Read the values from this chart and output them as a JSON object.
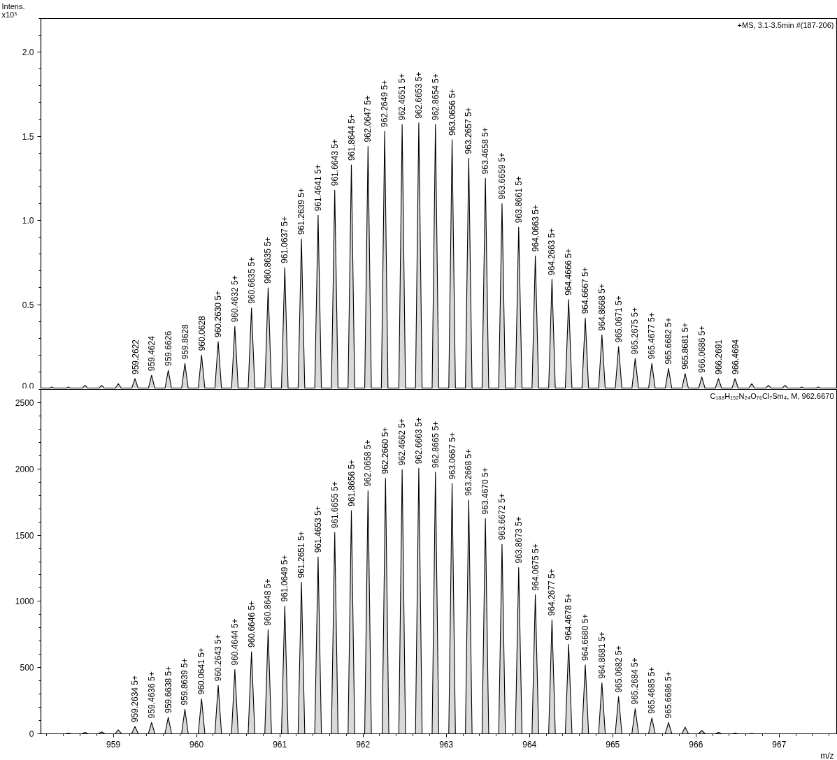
{
  "chart_data": [
    {
      "type": "area",
      "ylabel": "Intens.\nx10⁵",
      "xlim": [
        958.13,
        967.69
      ],
      "xticks": [
        959,
        960,
        961,
        962,
        963,
        964,
        965,
        966,
        967
      ],
      "ylim": [
        0,
        2.2
      ],
      "yticks": [
        {
          "value": 0,
          "label": "0.0"
        },
        {
          "value": 0.5,
          "label": "0.5"
        },
        {
          "value": 1,
          "label": "1.0"
        },
        {
          "value": 1.5,
          "label": "1.5"
        },
        {
          "value": 2,
          "label": "2.0"
        }
      ],
      "tick_labels": "y",
      "series": [
        {
          "color": "#d9d9d9",
          "x": [
            958.22,
            958.26,
            958.3,
            958.42,
            958.46,
            958.5,
            958.62,
            958.66,
            958.7,
            958.82,
            958.86,
            958.9,
            959.02,
            959.06,
            959.1,
            959.22,
            959.26,
            959.3,
            959.42,
            959.46,
            959.5,
            959.62,
            959.66,
            959.7,
            959.82,
            959.86,
            959.9,
            960.02,
            960.06,
            960.1,
            960.22,
            960.26,
            960.3,
            960.42,
            960.46,
            960.5,
            960.62,
            960.66,
            960.7,
            960.82,
            960.86,
            960.9,
            961.02,
            961.06,
            961.1,
            961.22,
            961.26,
            961.3,
            961.42,
            961.46,
            961.5,
            961.62,
            961.66,
            961.7,
            961.82,
            961.86,
            961.9,
            962.02,
            962.06,
            962.1,
            962.22,
            962.26,
            962.3,
            962.43,
            962.47,
            962.51,
            962.63,
            962.67,
            962.71,
            962.83,
            962.87,
            962.91,
            963.03,
            963.07,
            963.11,
            963.23,
            963.27,
            963.31,
            963.43,
            963.47,
            963.51,
            963.63,
            963.67,
            963.71,
            963.83,
            963.87,
            963.91,
            964.03,
            964.07,
            964.11,
            964.23,
            964.27,
            964.31,
            964.43,
            964.47,
            964.51,
            964.63,
            964.67,
            964.71,
            964.83,
            964.87,
            964.91,
            965.03,
            965.07,
            965.11,
            965.23,
            965.27,
            965.31,
            965.43,
            965.47,
            965.51,
            965.63,
            965.67,
            965.71,
            965.83,
            965.87,
            965.91,
            966.03,
            966.07,
            966.11,
            966.23,
            966.27,
            966.31,
            966.43,
            966.47,
            966.51,
            966.63,
            966.67,
            966.71,
            966.83,
            966.87,
            966.91,
            967.03,
            967.07,
            967.11,
            967.23,
            967.27,
            967.31,
            967.43,
            967.47,
            967.51
          ],
          "values": [
            0,
            0.01,
            0,
            0,
            0.01,
            0,
            0,
            0.02,
            0,
            0,
            0.02,
            0,
            0,
            0.03,
            0,
            0,
            0.06,
            0,
            0,
            0.08,
            0,
            0,
            0.11,
            0,
            0,
            0.15,
            0,
            0,
            0.2,
            0,
            0,
            0.28,
            0,
            0,
            0.37,
            0,
            0,
            0.48,
            0,
            0,
            0.6,
            0,
            0,
            0.72,
            0,
            0,
            0.89,
            0,
            0,
            1.03,
            0,
            0,
            1.18,
            0,
            0,
            1.33,
            0,
            0,
            1.44,
            0,
            0,
            1.53,
            0,
            0,
            1.57,
            0,
            0,
            1.58,
            0,
            0,
            1.57,
            0,
            0,
            1.48,
            0,
            0,
            1.37,
            0,
            0,
            1.25,
            0,
            0,
            1.1,
            0,
            0,
            0.96,
            0,
            0,
            0.79,
            0,
            0,
            0.65,
            0,
            0,
            0.53,
            0,
            0,
            0.42,
            0,
            0,
            0.32,
            0,
            0,
            0.25,
            0,
            0,
            0.18,
            0,
            0,
            0.15,
            0,
            0,
            0.12,
            0,
            0,
            0.09,
            0,
            0,
            0.07,
            0,
            0,
            0.06,
            0,
            0,
            0.06,
            0,
            0,
            0.03,
            0,
            0,
            0.02,
            0,
            0,
            0.02,
            0,
            0,
            0.01,
            0,
            0,
            0.01,
            0
          ]
        }
      ],
      "annotations": [
        "+MS, 3.1-3.5min #(187-206)",
        {
          "text": "959.2622",
          "x": 959.26,
          "y": 0.06
        },
        {
          "text": "959.4624",
          "x": 959.46,
          "y": 0.08
        },
        {
          "text": "959.6626",
          "x": 959.66,
          "y": 0.11
        },
        {
          "text": "959.8628",
          "x": 959.86,
          "y": 0.15
        },
        {
          "text": "960.0628",
          "x": 960.06,
          "y": 0.2
        },
        {
          "text": "960.2630  5+",
          "x": 960.26,
          "y": 0.28
        },
        {
          "text": "960.4632  5+",
          "x": 960.46,
          "y": 0.37
        },
        {
          "text": "960.6635  5+",
          "x": 960.66,
          "y": 0.48
        },
        {
          "text": "960.8635  5+",
          "x": 960.86,
          "y": 0.6
        },
        {
          "text": "961.0637  5+",
          "x": 961.06,
          "y": 0.72
        },
        {
          "text": "961.2639  5+",
          "x": 961.26,
          "y": 0.89
        },
        {
          "text": "961.4641  5+",
          "x": 961.46,
          "y": 1.03
        },
        {
          "text": "961.6643  5+",
          "x": 961.66,
          "y": 1.18
        },
        {
          "text": "961.8644  5+",
          "x": 961.86,
          "y": 1.33
        },
        {
          "text": "962.0647  5+",
          "x": 962.06,
          "y": 1.44
        },
        {
          "text": "962.2649  5+",
          "x": 962.26,
          "y": 1.53
        },
        {
          "text": "962.4651  5+",
          "x": 962.47,
          "y": 1.57
        },
        {
          "text": "962.6653  5+",
          "x": 962.67,
          "y": 1.58
        },
        {
          "text": "962.8654  5+",
          "x": 962.87,
          "y": 1.57
        },
        {
          "text": "963.0656  5+",
          "x": 963.07,
          "y": 1.48
        },
        {
          "text": "963.2657  5+",
          "x": 963.27,
          "y": 1.37
        },
        {
          "text": "963.4658  5+",
          "x": 963.47,
          "y": 1.25
        },
        {
          "text": "963.6659  5+",
          "x": 963.67,
          "y": 1.1
        },
        {
          "text": "963.8661  5+",
          "x": 963.87,
          "y": 0.96
        },
        {
          "text": "964.0663  5+",
          "x": 964.07,
          "y": 0.79
        },
        {
          "text": "964.2663  5+",
          "x": 964.27,
          "y": 0.65
        },
        {
          "text": "964.4666  5+",
          "x": 964.47,
          "y": 0.53
        },
        {
          "text": "964.6667  5+",
          "x": 964.67,
          "y": 0.42
        },
        {
          "text": "964.8668  5+",
          "x": 964.87,
          "y": 0.32
        },
        {
          "text": "965.0671  5+",
          "x": 965.07,
          "y": 0.25
        },
        {
          "text": "965.2675  5+",
          "x": 965.27,
          "y": 0.18
        },
        {
          "text": "965.4677  5+",
          "x": 965.47,
          "y": 0.15
        },
        {
          "text": "965.6682  5+",
          "x": 965.67,
          "y": 0.12
        },
        {
          "text": "965.8681  5+",
          "x": 965.87,
          "y": 0.09
        },
        {
          "text": "966.0686  5+",
          "x": 966.07,
          "y": 0.07
        },
        {
          "text": "966.2691",
          "x": 966.27,
          "y": 0.06
        },
        {
          "text": "966.4694",
          "x": 966.47,
          "y": 0.06
        }
      ]
    },
    {
      "type": "area",
      "xlabel": "m/z",
      "xlim": [
        958.13,
        967.69
      ],
      "xticks": [
        959,
        960,
        961,
        962,
        963,
        964,
        965,
        966,
        967
      ],
      "ylim": [
        0,
        2600
      ],
      "yticks": [
        0,
        500,
        1000,
        1500,
        2000,
        2500
      ],
      "series": [
        {
          "color": "#d9d9d9",
          "x": [
            958.42,
            958.46,
            958.5,
            958.62,
            958.66,
            958.7,
            958.82,
            958.86,
            958.9,
            959.02,
            959.06,
            959.1,
            959.22,
            959.26,
            959.3,
            959.42,
            959.46,
            959.5,
            959.62,
            959.66,
            959.7,
            959.82,
            959.86,
            959.9,
            960.02,
            960.06,
            960.1,
            960.22,
            960.26,
            960.3,
            960.42,
            960.46,
            960.5,
            960.62,
            960.66,
            960.7,
            960.82,
            960.86,
            960.9,
            961.02,
            961.06,
            961.1,
            961.22,
            961.26,
            961.3,
            961.42,
            961.46,
            961.5,
            961.62,
            961.66,
            961.7,
            961.82,
            961.86,
            961.9,
            962.02,
            962.06,
            962.1,
            962.23,
            962.27,
            962.31,
            962.43,
            962.47,
            962.51,
            962.63,
            962.67,
            962.71,
            962.83,
            962.87,
            962.91,
            963.03,
            963.07,
            963.11,
            963.23,
            963.27,
            963.31,
            963.43,
            963.47,
            963.51,
            963.63,
            963.67,
            963.71,
            963.83,
            963.87,
            963.91,
            964.03,
            964.07,
            964.11,
            964.23,
            964.27,
            964.31,
            964.43,
            964.47,
            964.51,
            964.63,
            964.67,
            964.71,
            964.83,
            964.87,
            964.91,
            965.03,
            965.07,
            965.11,
            965.23,
            965.27,
            965.31,
            965.43,
            965.47,
            965.51,
            965.63,
            965.67,
            965.71,
            965.83,
            965.87,
            965.91,
            966.03,
            966.07,
            966.11,
            966.23,
            966.27,
            966.31,
            966.43,
            966.47,
            966.51,
            966.63,
            966.67,
            966.71
          ],
          "values": [
            0,
            5,
            0,
            0,
            10,
            0,
            0,
            15,
            0,
            0,
            30,
            0,
            0,
            55,
            0,
            0,
            85,
            0,
            0,
            125,
            0,
            0,
            185,
            0,
            0,
            265,
            0,
            0,
            365,
            0,
            0,
            485,
            0,
            0,
            620,
            0,
            0,
            785,
            0,
            0,
            965,
            0,
            0,
            1145,
            0,
            0,
            1335,
            0,
            0,
            1520,
            0,
            0,
            1685,
            0,
            0,
            1835,
            0,
            0,
            1930,
            0,
            0,
            1995,
            0,
            0,
            2005,
            0,
            0,
            1975,
            0,
            0,
            1890,
            0,
            0,
            1765,
            0,
            0,
            1625,
            0,
            0,
            1430,
            0,
            0,
            1255,
            0,
            0,
            1050,
            0,
            0,
            860,
            0,
            0,
            675,
            0,
            0,
            520,
            0,
            0,
            385,
            0,
            0,
            280,
            0,
            0,
            190,
            0,
            0,
            120,
            0,
            0,
            85,
            0,
            0,
            50,
            0,
            0,
            25,
            0,
            0,
            10,
            0,
            0,
            5,
            0,
            0,
            3,
            0
          ]
        }
      ],
      "annotations": [
        "C₁₈₈H₁₅₂N₂₄O₇₆Cl₇Sm₄, M, 962.6670",
        {
          "text": "959.2634  5+",
          "x": 959.26,
          "y": 55
        },
        {
          "text": "959.4636  5+",
          "x": 959.46,
          "y": 85
        },
        {
          "text": "959.6638  5+",
          "x": 959.66,
          "y": 125
        },
        {
          "text": "959.8639  5+",
          "x": 959.86,
          "y": 185
        },
        {
          "text": "960.0641  5+",
          "x": 960.06,
          "y": 265
        },
        {
          "text": "960.2643  5+",
          "x": 960.26,
          "y": 365
        },
        {
          "text": "960.4644  5+",
          "x": 960.46,
          "y": 485
        },
        {
          "text": "960.6646  5+",
          "x": 960.66,
          "y": 620
        },
        {
          "text": "960.8648  5+",
          "x": 960.86,
          "y": 785
        },
        {
          "text": "961.0649  5+",
          "x": 961.06,
          "y": 965
        },
        {
          "text": "961.2651  5+",
          "x": 961.26,
          "y": 1145
        },
        {
          "text": "961.4653  5+",
          "x": 961.46,
          "y": 1335
        },
        {
          "text": "961.6655  5+",
          "x": 961.66,
          "y": 1520
        },
        {
          "text": "961.8656  5+",
          "x": 961.86,
          "y": 1685
        },
        {
          "text": "962.0658  5+",
          "x": 962.06,
          "y": 1835
        },
        {
          "text": "962.2660  5+",
          "x": 962.27,
          "y": 1930
        },
        {
          "text": "962.4662  5+",
          "x": 962.47,
          "y": 1995
        },
        {
          "text": "962.6663  5+",
          "x": 962.67,
          "y": 2005
        },
        {
          "text": "962.8665  5+",
          "x": 962.87,
          "y": 1975
        },
        {
          "text": "963.0667  5+",
          "x": 963.07,
          "y": 1890
        },
        {
          "text": "963.2668  5+",
          "x": 963.27,
          "y": 1765
        },
        {
          "text": "963.4670  5+",
          "x": 963.47,
          "y": 1625
        },
        {
          "text": "963.6672  5+",
          "x": 963.67,
          "y": 1430
        },
        {
          "text": "963.8673  5+",
          "x": 963.87,
          "y": 1255
        },
        {
          "text": "964.0675  5+",
          "x": 964.07,
          "y": 1050
        },
        {
          "text": "964.2677  5+",
          "x": 964.27,
          "y": 860
        },
        {
          "text": "964.4678  5+",
          "x": 964.47,
          "y": 675
        },
        {
          "text": "964.6680  5+",
          "x": 964.67,
          "y": 520
        },
        {
          "text": "964.8681  5+",
          "x": 964.87,
          "y": 385
        },
        {
          "text": "965.0682  5+",
          "x": 965.07,
          "y": 280
        },
        {
          "text": "965.2684  5+",
          "x": 965.27,
          "y": 190
        },
        {
          "text": "965.4685  5+",
          "x": 965.47,
          "y": 120
        },
        {
          "text": "965.6686  5+",
          "x": 965.67,
          "y": 85
        }
      ]
    }
  ]
}
